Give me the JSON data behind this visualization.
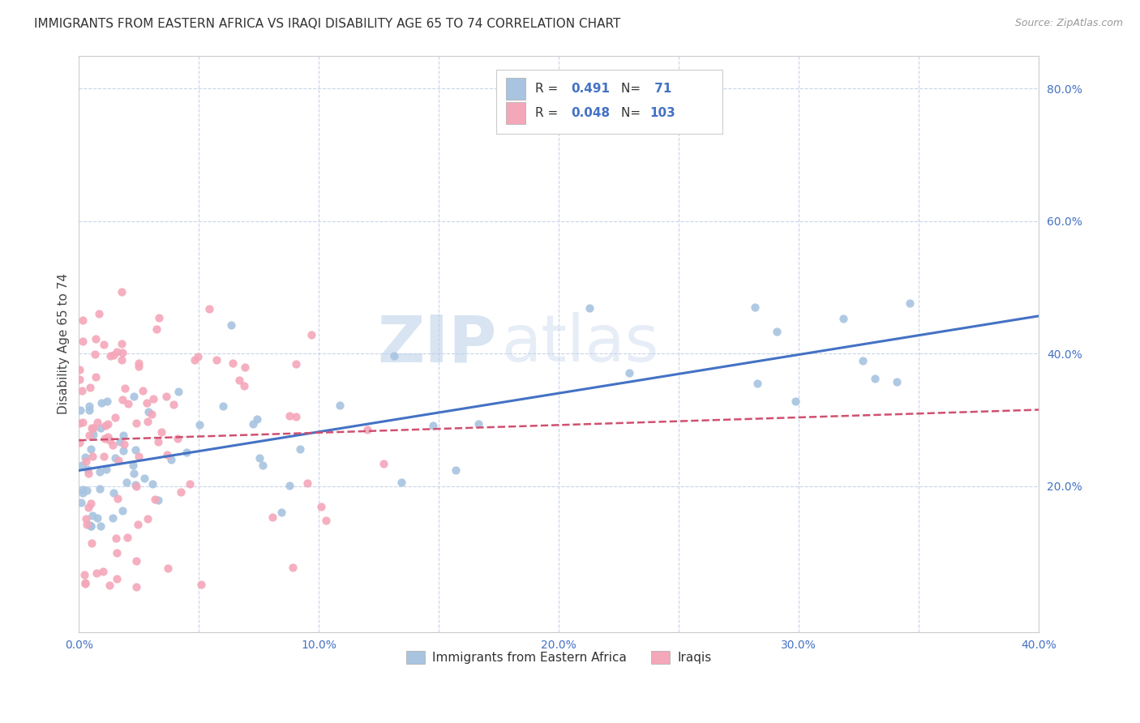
{
  "title": "IMMIGRANTS FROM EASTERN AFRICA VS IRAQI DISABILITY AGE 65 TO 74 CORRELATION CHART",
  "source": "Source: ZipAtlas.com",
  "ylabel": "Disability Age 65 to 74",
  "watermark_zip": "ZIP",
  "watermark_atlas": "atlas",
  "xlim": [
    0.0,
    0.4
  ],
  "ylim": [
    -0.02,
    0.85
  ],
  "xticks": [
    0.0,
    0.05,
    0.1,
    0.15,
    0.2,
    0.25,
    0.3,
    0.35,
    0.4
  ],
  "xticklabels": [
    "0.0%",
    "",
    "10.0%",
    "",
    "20.0%",
    "",
    "30.0%",
    "",
    "40.0%"
  ],
  "yticks_right": [
    0.2,
    0.4,
    0.6,
    0.8
  ],
  "ytick_right_labels": [
    "20.0%",
    "40.0%",
    "60.0%",
    "80.0%"
  ],
  "series1_color": "#a8c4e0",
  "series1_line_color": "#4472c4",
  "series2_color": "#f4a7b9",
  "series2_line_color": "#d05070",
  "R1": 0.491,
  "N1": 71,
  "R2": 0.048,
  "N2": 103,
  "legend_labels": [
    "Immigrants from Eastern Africa",
    "Iraqis"
  ],
  "legend_text_color": "#333333",
  "legend_num_color": "#4472c4",
  "title_fontsize": 11,
  "source_fontsize": 9,
  "tick_color": "#4472c4",
  "background_color": "#ffffff",
  "grid_color": "#c8d4e8",
  "spine_color": "#cccccc"
}
